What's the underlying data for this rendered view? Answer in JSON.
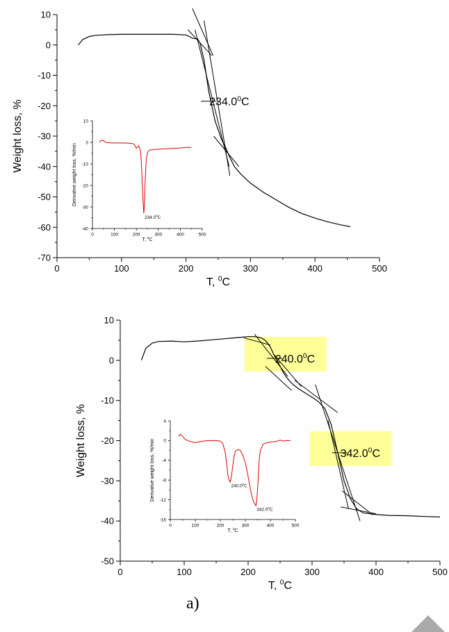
{
  "chart_data": [
    {
      "type": "line",
      "xlabel": "T, ⁰C",
      "ylabel": "Weight loss, %",
      "xlim": [
        0,
        500
      ],
      "ylim": [
        -70,
        10
      ],
      "xticks": [
        0,
        100,
        200,
        300,
        400,
        500
      ],
      "yticks": [
        10,
        0,
        -10,
        -20,
        -30,
        -40,
        -50,
        -60,
        -70
      ],
      "series": [
        {
          "x": [
            33,
            40,
            50,
            60,
            80,
            100,
            120,
            150,
            180,
            200,
            205,
            210,
            218,
            222,
            228,
            235,
            245,
            255,
            262,
            268,
            275,
            285,
            300,
            320,
            340,
            360,
            380,
            400,
            420,
            440,
            455
          ],
          "y": [
            0,
            1.8,
            2.8,
            3.2,
            3.4,
            3.5,
            3.5,
            3.5,
            3.5,
            3.3,
            2.8,
            2.2,
            2.0,
            0.5,
            -5,
            -15,
            -25,
            -31,
            -34,
            -37,
            -40,
            -42.5,
            -45.5,
            -48.5,
            -51,
            -53.5,
            -55.5,
            -57,
            -58.2,
            -59.2,
            -59.8
          ]
        }
      ],
      "tangent_lines": [
        {
          "x": [
            210,
            242
          ],
          "y": [
            12,
            -3.5
          ]
        },
        {
          "x": [
            203,
            240
          ],
          "y": [
            5,
            -3.5
          ]
        },
        {
          "x": [
            214,
            267
          ],
          "y": [
            5,
            -40
          ]
        },
        {
          "x": [
            228,
            268
          ],
          "y": [
            8,
            -43
          ]
        },
        {
          "x": [
            243,
            282
          ],
          "y": [
            -30,
            -40
          ]
        }
      ],
      "annotations": [
        {
          "text": "234.0⁰C",
          "x": 234,
          "y": -18.5
        }
      ],
      "inset": {
        "type": "line",
        "xlabel": "T, ⁰C",
        "ylabel": "Derivative weight loss, %/min",
        "xlim": [
          0,
          500
        ],
        "ylim": [
          -40,
          10
        ],
        "xticks": [
          0,
          100,
          200,
          300,
          400,
          500
        ],
        "yticks": [
          10,
          0,
          -10,
          -20,
          -30,
          -40
        ],
        "series": [
          {
            "color": "#e00000",
            "x": [
              33,
              40,
              50,
              60,
              80,
              100,
              120,
              150,
              180,
              190,
              195,
              200,
              205,
              210,
              215,
              220,
              224,
              228,
              232,
              234,
              236,
              240,
              245,
              250,
              255,
              260,
              270,
              280,
              300,
              330,
              360,
              400,
              420,
              450
            ],
            "y": [
              0,
              1,
              0.8,
              0,
              -0.2,
              -0.3,
              -0.3,
              -0.3,
              -0.5,
              -0.8,
              -1.8,
              -2.8,
              -2.3,
              -1.6,
              -2.5,
              -5,
              -12,
              -22,
              -30,
              -33,
              -30,
              -18,
              -8,
              -5,
              -4,
              -3.6,
              -3.4,
              -3.3,
              -3.2,
              -3,
              -2.8,
              -2.6,
              -2.4,
              -2.3
            ]
          }
        ],
        "annotations": [
          {
            "text": "234.0⁰C",
            "x": 234,
            "y": -33
          }
        ]
      }
    },
    {
      "type": "line",
      "xlabel": "T, ⁰C",
      "ylabel": "Weight loss, %",
      "xlim": [
        0,
        500
      ],
      "ylim": [
        -50,
        10
      ],
      "xticks": [
        0,
        100,
        200,
        300,
        400,
        500
      ],
      "yticks": [
        10,
        0,
        -10,
        -20,
        -30,
        -40,
        -50
      ],
      "series": [
        {
          "x": [
            33,
            40,
            50,
            60,
            80,
            100,
            120,
            150,
            180,
            200,
            210,
            215,
            220,
            225,
            230,
            235,
            240,
            245,
            250,
            255,
            260,
            265,
            270,
            280,
            290,
            300,
            310,
            320,
            330,
            340,
            350,
            360,
            370,
            380,
            400,
            420,
            450,
            480,
            500
          ],
          "y": [
            0,
            3,
            4.3,
            4.7,
            4.8,
            4.6,
            4.8,
            5.2,
            5.6,
            5.9,
            5.9,
            5.8,
            5.6,
            5.2,
            4.4,
            3.2,
            1.5,
            0,
            -1.5,
            -3,
            -4.2,
            -5.2,
            -6,
            -7.2,
            -8.2,
            -9.2,
            -10.3,
            -12,
            -16,
            -23,
            -30,
            -34.5,
            -37,
            -38,
            -38.4,
            -38.6,
            -38.7,
            -38.9,
            -39
          ]
        }
      ],
      "tangent_lines": [
        {
          "x": [
            193,
            235
          ],
          "y": [
            5.6,
            3.8
          ]
        },
        {
          "x": [
            210,
            262
          ],
          "y": [
            6.5,
            -4
          ]
        },
        {
          "x": [
            227,
            268
          ],
          "y": [
            -1.5,
            -7.5
          ]
        },
        {
          "x": [
            240,
            283
          ],
          "y": [
            1.5,
            -6.5
          ]
        },
        {
          "x": [
            273,
            340
          ],
          "y": [
            -5,
            -13
          ]
        },
        {
          "x": [
            305,
            375
          ],
          "y": [
            -6,
            -40
          ]
        },
        {
          "x": [
            325,
            357
          ],
          "y": [
            -15,
            -37
          ]
        },
        {
          "x": [
            345,
            400
          ],
          "y": [
            -36.5,
            -38.2
          ]
        },
        {
          "x": [
            347,
            395
          ],
          "y": [
            -32.5,
            -38.5
          ]
        }
      ],
      "annotations": [
        {
          "text": "240.0⁰C",
          "x": 240,
          "y": 0.5,
          "highlight": "#ffff99"
        },
        {
          "text": "342.0⁰C",
          "x": 342,
          "y": -23,
          "highlight": "#ffff99"
        }
      ],
      "inset": {
        "type": "line",
        "xlabel": "T, ⁰C",
        "ylabel": "Derivative weight loss, %/min",
        "xlim": [
          0,
          500
        ],
        "ylim": [
          -16,
          4
        ],
        "xticks": [
          0,
          100,
          200,
          300,
          400,
          500
        ],
        "yticks": [
          4,
          0,
          -4,
          -8,
          -12,
          -16
        ],
        "series": [
          {
            "color": "#e00000",
            "x": [
              33,
              40,
              50,
              60,
              80,
              100,
              120,
              150,
              180,
              200,
              210,
              220,
              225,
              230,
              235,
              240,
              245,
              250,
              255,
              260,
              270,
              280,
              290,
              300,
              310,
              320,
              330,
              335,
              340,
              342,
              345,
              350,
              355,
              360,
              370,
              380,
              390,
              400,
              420,
              440,
              450,
              460,
              480
            ],
            "y": [
              0.8,
              1.3,
              0.8,
              0.2,
              -0.2,
              -0.4,
              -0.2,
              0,
              0,
              -0.1,
              -0.6,
              -2.5,
              -4.5,
              -7,
              -8,
              -8.4,
              -7,
              -5,
              -3.2,
              -2.2,
              -1.8,
              -2,
              -3,
              -4.5,
              -7,
              -9.8,
              -12,
              -12.6,
              -13,
              -13.2,
              -12.5,
              -9,
              -4,
              -2,
              -0.8,
              -0.5,
              -0.4,
              -0.3,
              -0.2,
              0.1,
              -0.1,
              0,
              0
            ]
          }
        ],
        "annotations": [
          {
            "text": "240.0⁰C",
            "x": 240,
            "y": -8.4
          },
          {
            "text": "342.0⁰C",
            "x": 342,
            "y": -13.2
          }
        ]
      }
    }
  ],
  "caption": "a)"
}
